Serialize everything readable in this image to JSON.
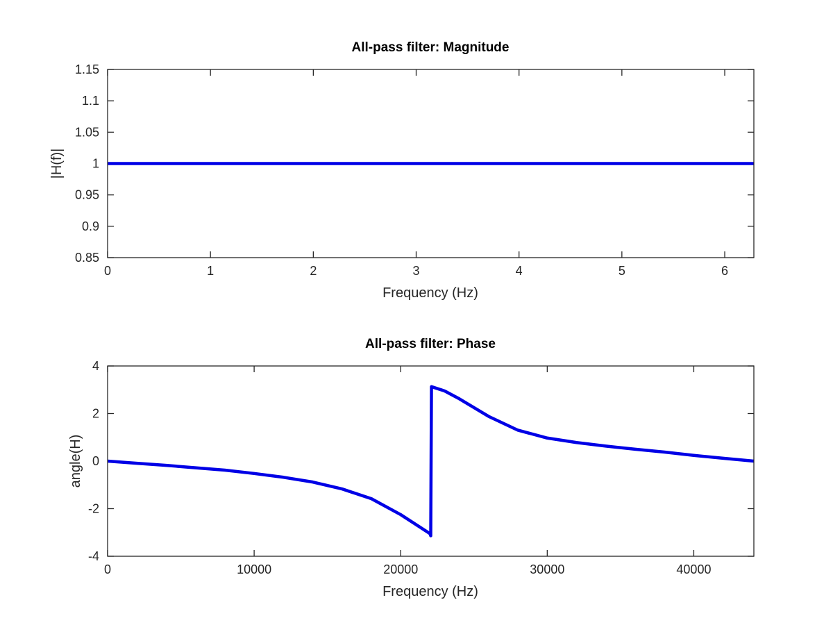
{
  "chart_data": [
    {
      "type": "line",
      "title": "All-pass filter: Magnitude",
      "xlabel": "Frequency (Hz)",
      "ylabel": "|H(f)|",
      "xlim": [
        0,
        6.2832
      ],
      "ylim": [
        0.85,
        1.15
      ],
      "xticks": [
        0,
        1,
        2,
        3,
        4,
        5,
        6
      ],
      "yticks": [
        0.85,
        0.9,
        0.95,
        1,
        1.05,
        1.1,
        1.15
      ],
      "xtick_labels": [
        "0",
        "1",
        "2",
        "3",
        "4",
        "5",
        "6"
      ],
      "ytick_labels": [
        "0.85",
        "0.9",
        "0.95",
        "1",
        "1.05",
        "1.1",
        "1.15"
      ],
      "grid": false,
      "series": [
        {
          "color": "#0000e6",
          "x": [
            0,
            6.2832
          ],
          "y": [
            1,
            1
          ]
        }
      ]
    },
    {
      "type": "line",
      "title": "All-pass filter: Phase",
      "xlabel": "Frequency (Hz)",
      "ylabel": "angle(H)",
      "xlim": [
        0,
        44100
      ],
      "ylim": [
        -4,
        4
      ],
      "xticks": [
        0,
        10000,
        20000,
        30000,
        40000
      ],
      "yticks": [
        -4,
        -2,
        0,
        2,
        4
      ],
      "xtick_labels": [
        "0",
        "10000",
        "20000",
        "30000",
        "40000"
      ],
      "ytick_labels": [
        "-4",
        "-2",
        "0",
        "2",
        "4"
      ],
      "grid": false,
      "series": [
        {
          "color": "#0000e6",
          "x": [
            0,
            2000,
            4000,
            6000,
            8000,
            10000,
            12000,
            14000,
            16000,
            18000,
            20000,
            21000,
            22000,
            22050,
            22100,
            23000,
            24000,
            26000,
            28000,
            30000,
            32000,
            34000,
            36000,
            38000,
            40000,
            42000,
            44100
          ],
          "y": [
            0,
            -0.09,
            -0.18,
            -0.28,
            -0.38,
            -0.52,
            -0.68,
            -0.88,
            -1.17,
            -1.58,
            -2.25,
            -2.65,
            -3.05,
            -3.14,
            3.13,
            2.95,
            2.62,
            1.88,
            1.3,
            0.97,
            0.78,
            0.63,
            0.5,
            0.38,
            0.24,
            0.12,
            0
          ]
        }
      ]
    }
  ]
}
